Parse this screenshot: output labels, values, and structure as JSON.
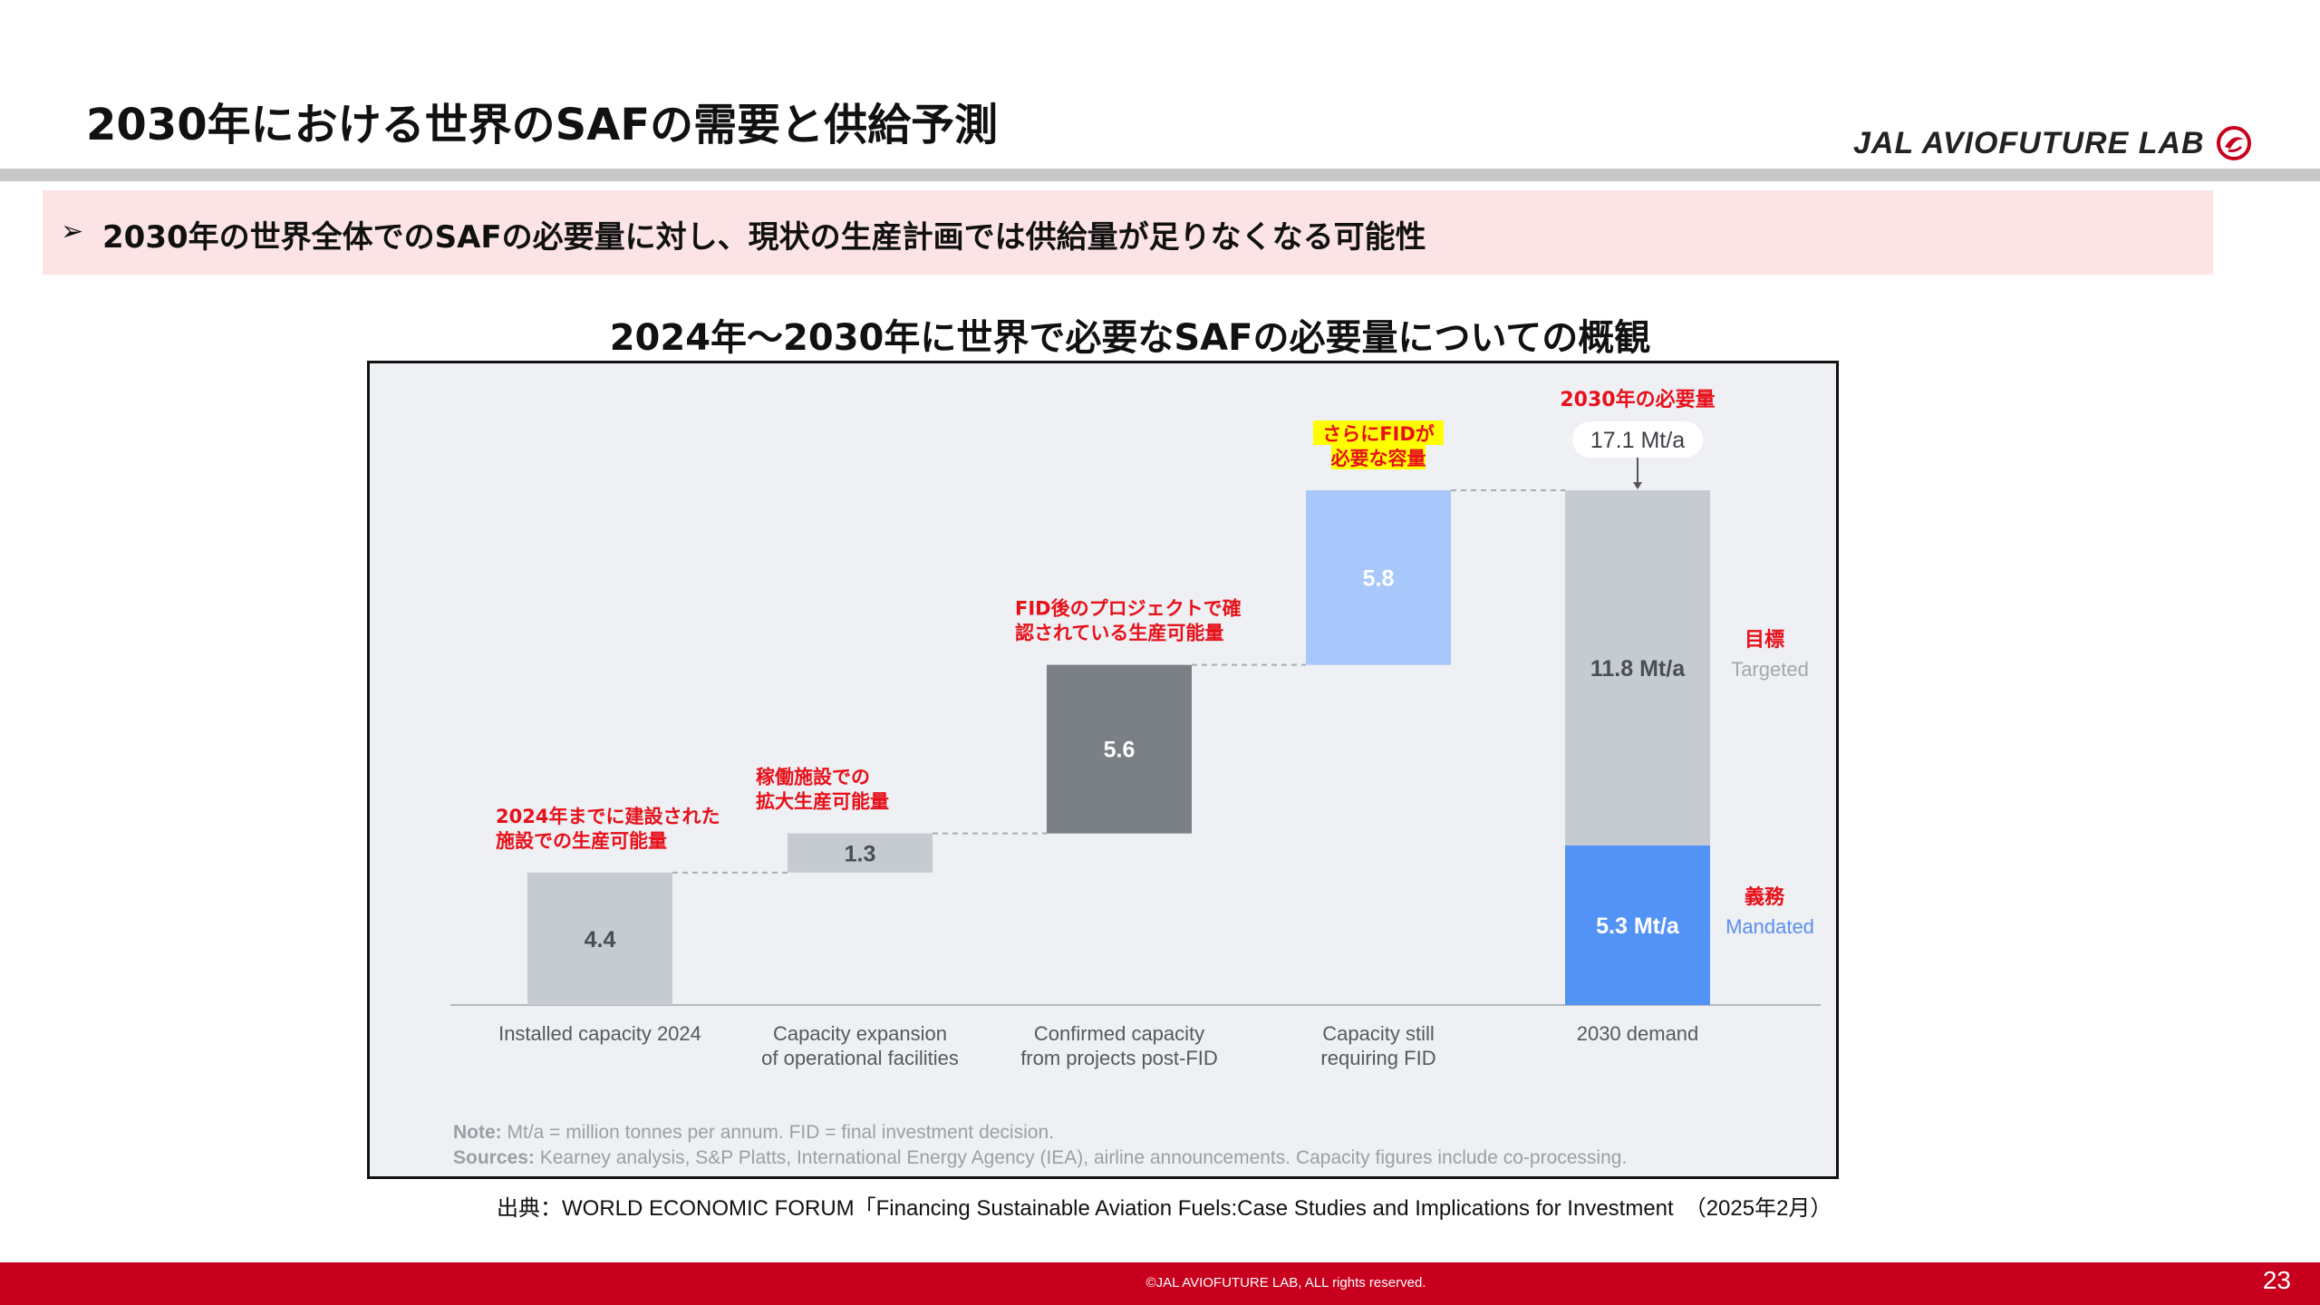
{
  "slide": {
    "title": "2030年における世界のSAFの需要と供給予測",
    "logo_text": "JAL AVIOFUTURE LAB",
    "banner_arrow": "➢",
    "banner_text": "2030年の世界全体でのSAFの必要量に対し、現状の生産計画では供給量が足りなくなる可能性",
    "chart_heading": "2024年～2030年に世界で必要なSAFの必要量についての概観",
    "source": "出典：WORLD ECONOMIC FORUM「Financing Sustainable Aviation Fuels:Case Studies and Implications for Investment　（2025年2月）",
    "copyright": "©JAL AVIOFUTURE LAB, ALL rights reserved.",
    "page_number": "23"
  },
  "colors": {
    "brand_red": "#c8001e",
    "banner_bg": "#fce4e6",
    "annotation_red": "#e8101a",
    "highlight_yellow": "#ffff00",
    "bar_light_gray": "#c5cbd1",
    "bar_dark_gray": "#7b8087",
    "bar_light_blue": "#a8c8fb",
    "bar_blue": "#5393f5"
  },
  "chart_data": {
    "type": "bar",
    "subtype": "waterfall",
    "categories": [
      "Installed capacity 2024",
      "Capacity expansion\nof operational facilities",
      "Confirmed capacity\nfrom projects post-FID",
      "Capacity still\nrequiring FID",
      "2030 demand"
    ],
    "steps": [
      {
        "category_index": 0,
        "value": 4.4,
        "label": "4.4",
        "color": "#c5cbd1",
        "annotation": [
          "2024年までに建設された",
          "施設での生産可能量"
        ]
      },
      {
        "category_index": 1,
        "value": 1.3,
        "label": "1.3",
        "color": "#c5cbd1",
        "annotation": [
          "稼働施設での",
          "拡大生産可能量"
        ]
      },
      {
        "category_index": 2,
        "value": 5.6,
        "label": "5.6",
        "color": "#7b8087",
        "annotation": [
          "FID後のプロジェクトで確",
          "認されている生産可能量"
        ]
      },
      {
        "category_index": 3,
        "value": 5.8,
        "label": "5.8",
        "color": "#a8c8fb",
        "annotation": [
          "さらにFIDが",
          "必要な容量"
        ],
        "highlight": true
      }
    ],
    "total": {
      "category_index": 4,
      "value": 17.1,
      "label": "17.1 Mt/a",
      "heading": "2030年の必要量",
      "segments": [
        {
          "name": "Mandated",
          "jp": "義務",
          "value": 5.3,
          "label": "5.3 Mt/a",
          "color": "#5393f5"
        },
        {
          "name": "Targeted",
          "jp": "目標",
          "value": 11.8,
          "label": "11.8 Mt/a",
          "color": "#c5cbd1"
        }
      ]
    },
    "unit": "Mt/a",
    "ylim": [
      0,
      17.1
    ],
    "grid": false,
    "note_label": "Note:",
    "note_text": "Mt/a = million tonnes per annum. FID = final investment decision.",
    "sources_label": "Sources:",
    "sources_text": "Kearney analysis, S&P Platts, International Energy Agency (IEA), airline announcements. Capacity figures include co-processing."
  }
}
